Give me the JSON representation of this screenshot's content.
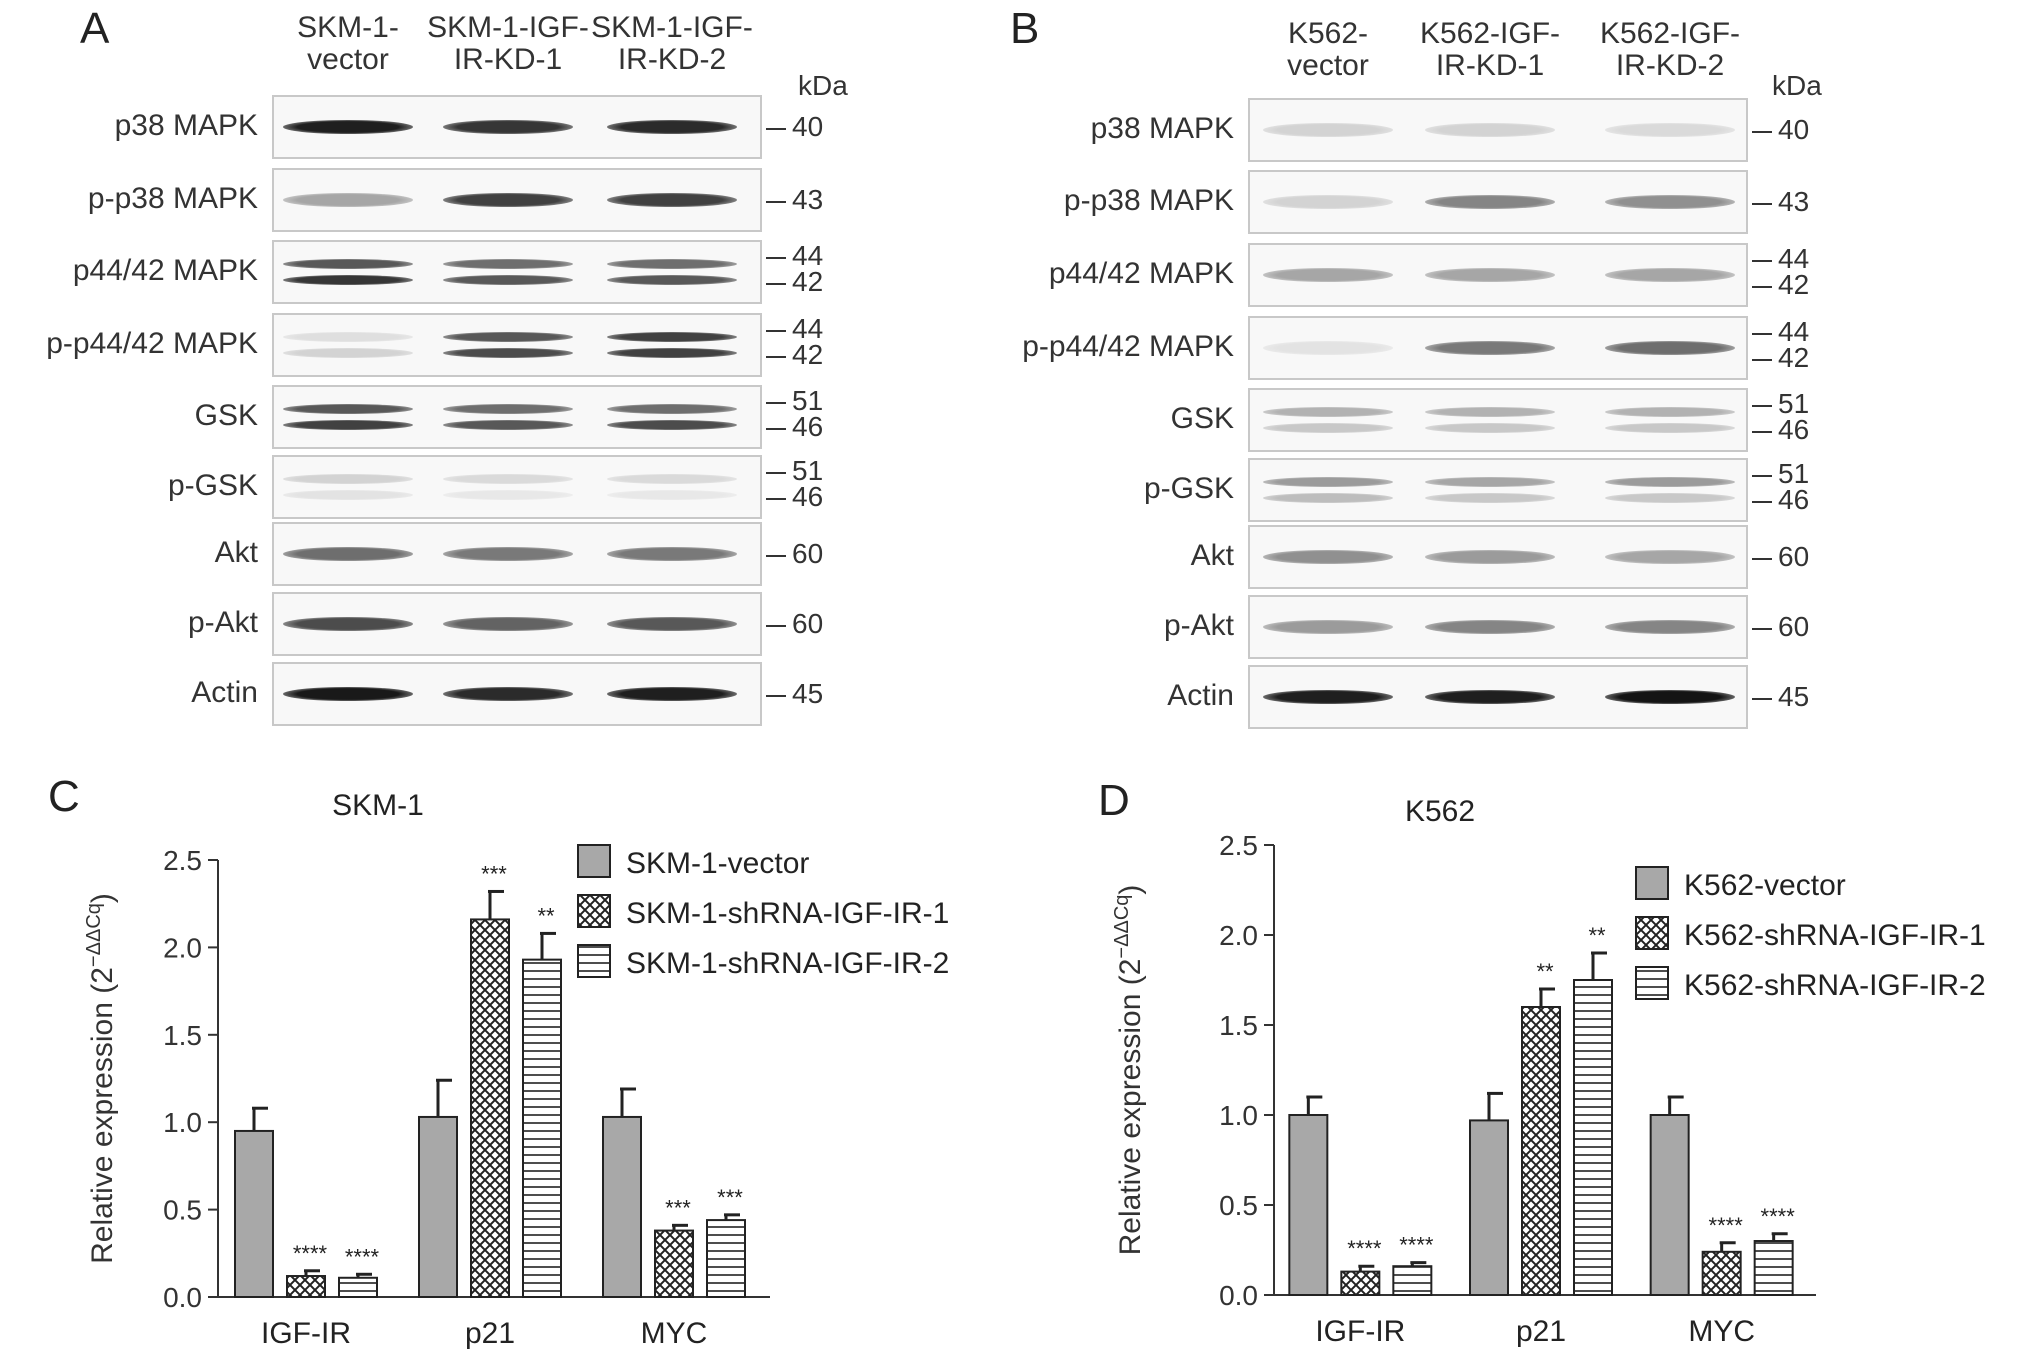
{
  "panels": {
    "A": {
      "letter": "A",
      "lanes": [
        "SKM-1-\nvector",
        "SKM-1-IGF-\nIR-KD-1",
        "SKM-1-IGF-\nIR-KD-2"
      ],
      "kda": "kDa",
      "rows": [
        {
          "label": "p38 MAPK",
          "mw": [
            "40"
          ],
          "bands": [
            [
              0.95
            ],
            [
              0.85
            ],
            [
              0.9
            ]
          ]
        },
        {
          "label": "p-p38 MAPK",
          "mw": [
            "43"
          ],
          "bands": [
            [
              0.35
            ],
            [
              0.8
            ],
            [
              0.8
            ]
          ]
        },
        {
          "label": "p44/42 MAPK",
          "mw": [
            "44",
            "42"
          ],
          "bands": [
            [
              0.7,
              0.85
            ],
            [
              0.6,
              0.7
            ],
            [
              0.6,
              0.7
            ]
          ]
        },
        {
          "label": "p-p44/42 MAPK",
          "mw": [
            "44",
            "42"
          ],
          "bands": [
            [
              0.1,
              0.15
            ],
            [
              0.7,
              0.75
            ],
            [
              0.8,
              0.8
            ]
          ]
        },
        {
          "label": "GSK",
          "mw": [
            "51",
            "46"
          ],
          "bands": [
            [
              0.7,
              0.8
            ],
            [
              0.6,
              0.7
            ],
            [
              0.6,
              0.75
            ]
          ]
        },
        {
          "label": "p-GSK",
          "mw": [
            "51",
            "46"
          ],
          "bands": [
            [
              0.15,
              0.08
            ],
            [
              0.12,
              0.06
            ],
            [
              0.12,
              0.06
            ]
          ]
        },
        {
          "label": "Akt",
          "mw": [
            "60"
          ],
          "bands": [
            [
              0.6
            ],
            [
              0.55
            ],
            [
              0.55
            ]
          ]
        },
        {
          "label": "p-Akt",
          "mw": [
            "60"
          ],
          "bands": [
            [
              0.75
            ],
            [
              0.65
            ],
            [
              0.7
            ]
          ]
        },
        {
          "label": "Actin",
          "mw": [
            "45"
          ],
          "bands": [
            [
              0.98
            ],
            [
              0.9
            ],
            [
              0.95
            ]
          ]
        }
      ]
    },
    "B": {
      "letter": "B",
      "lanes": [
        "K562-\nvector",
        "K562-IGF-\nIR-KD-1",
        "K562-IGF-\nIR-KD-2"
      ],
      "kda": "kDa",
      "rows": [
        {
          "label": "p38 MAPK",
          "mw": [
            "40"
          ],
          "bands": [
            [
              0.15
            ],
            [
              0.15
            ],
            [
              0.12
            ]
          ]
        },
        {
          "label": "p-p38 MAPK",
          "mw": [
            "43"
          ],
          "bands": [
            [
              0.15
            ],
            [
              0.5
            ],
            [
              0.45
            ]
          ]
        },
        {
          "label": "p44/42 MAPK",
          "mw": [
            "44",
            "42"
          ],
          "bands": [
            [
              0.35
            ],
            [
              0.35
            ],
            [
              0.35
            ]
          ]
        },
        {
          "label": "p-p44/42 MAPK",
          "mw": [
            "44",
            "42"
          ],
          "bands": [
            [
              0.08
            ],
            [
              0.55
            ],
            [
              0.6
            ]
          ]
        },
        {
          "label": "GSK",
          "mw": [
            "51",
            "46"
          ],
          "bands": [
            [
              0.3,
              0.2
            ],
            [
              0.3,
              0.2
            ],
            [
              0.3,
              0.2
            ]
          ]
        },
        {
          "label": "p-GSK",
          "mw": [
            "51",
            "46"
          ],
          "bands": [
            [
              0.4,
              0.25
            ],
            [
              0.35,
              0.2
            ],
            [
              0.4,
              0.2
            ]
          ]
        },
        {
          "label": "Akt",
          "mw": [
            "60"
          ],
          "bands": [
            [
              0.45
            ],
            [
              0.4
            ],
            [
              0.35
            ]
          ]
        },
        {
          "label": "p-Akt",
          "mw": [
            "60"
          ],
          "bands": [
            [
              0.4
            ],
            [
              0.5
            ],
            [
              0.5
            ]
          ]
        },
        {
          "label": "Actin",
          "mw": [
            "45"
          ],
          "bands": [
            [
              0.95
            ],
            [
              0.95
            ],
            [
              1.0
            ]
          ]
        }
      ]
    }
  },
  "chart_data": [
    {
      "type": "bar",
      "panel": "C",
      "title": "SKM-1",
      "ylabel": "Relative expression (2",
      "ylabel_sup": "−ΔΔCq",
      "ylabel_close": ")",
      "ylim": [
        0,
        2.5
      ],
      "yticks": [
        "0.0",
        "0.5",
        "1.0",
        "1.5",
        "2.0",
        "2.5"
      ],
      "categories": [
        "IGF-IR",
        "p21",
        "MYC"
      ],
      "series": [
        {
          "name": "SKM-1-vector",
          "values": [
            0.95,
            1.03,
            1.03
          ],
          "errors": [
            0.13,
            0.21,
            0.16
          ],
          "sig": [
            "",
            "",
            ""
          ]
        },
        {
          "name": "SKM-1-shRNA-IGF-IR-1",
          "values": [
            0.12,
            2.16,
            0.38
          ],
          "errors": [
            0.03,
            0.16,
            0.03
          ],
          "sig": [
            "****",
            "***",
            "***"
          ]
        },
        {
          "name": "SKM-1-shRNA-IGF-IR-2",
          "values": [
            0.11,
            1.93,
            0.44
          ],
          "errors": [
            0.02,
            0.15,
            0.03
          ],
          "sig": [
            "****",
            "**",
            "***"
          ]
        }
      ],
      "legend": "top-right"
    },
    {
      "type": "bar",
      "panel": "D",
      "title": "K562",
      "ylabel": "Relative expression (2",
      "ylabel_sup": "−ΔΔCq",
      "ylabel_close": ")",
      "ylim": [
        0,
        2.5
      ],
      "yticks": [
        "0.0",
        "0.5",
        "1.0",
        "1.5",
        "2.0",
        "2.5"
      ],
      "categories": [
        "IGF-IR",
        "p21",
        "MYC"
      ],
      "series": [
        {
          "name": "K562-vector",
          "values": [
            1.0,
            0.97,
            1.0
          ],
          "errors": [
            0.1,
            0.15,
            0.1
          ],
          "sig": [
            "",
            "",
            ""
          ]
        },
        {
          "name": "K562-shRNA-IGF-IR-1",
          "values": [
            0.13,
            1.6,
            0.24
          ],
          "errors": [
            0.03,
            0.1,
            0.05
          ],
          "sig": [
            "****",
            "**",
            "****"
          ]
        },
        {
          "name": "K562-shRNA-IGF-IR-2",
          "values": [
            0.16,
            1.75,
            0.3
          ],
          "errors": [
            0.02,
            0.15,
            0.04
          ],
          "sig": [
            "****",
            "**",
            "****"
          ]
        }
      ],
      "legend": "top-right"
    }
  ],
  "colors": {
    "bar_fill": "#a8a8a8",
    "axis": "#333333",
    "band": "#1a1a1a"
  }
}
